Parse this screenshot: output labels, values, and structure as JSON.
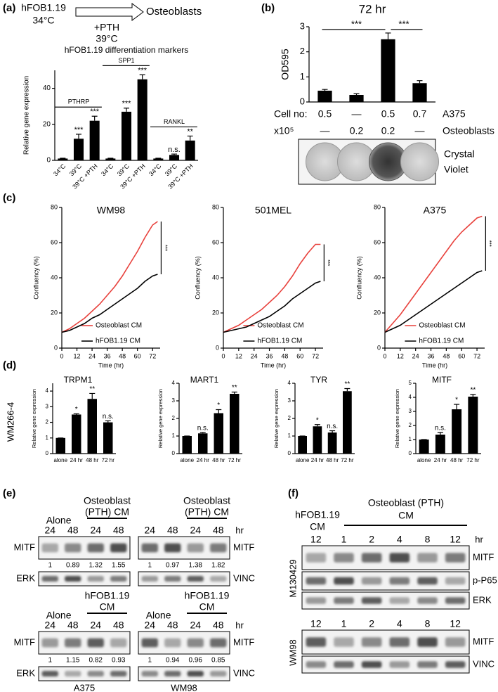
{
  "panel_labels": [
    "(a)",
    "(b)",
    "(c)",
    "(d)",
    "(e)",
    "(f)"
  ],
  "schematic": {
    "start": "hFOB1.19",
    "start_temp": "34°C",
    "end": "Osteoblasts",
    "treatment": "+PTH",
    "treatment_temp": "39°C"
  },
  "crystal_violet": {
    "label_lines": [
      "Crystal",
      "Violet"
    ]
  },
  "panel_d": {
    "row_label": "WM266-4"
  },
  "chart_data": [
    {
      "type": "bar",
      "title": "hFOB1.19 differentiation markers",
      "ylabel": "Relative gene expression",
      "categories": [
        "34°C",
        "39°C",
        "39°C +PTH",
        "34°C",
        "39°C",
        "39°C +PTH",
        "34°C",
        "39°C",
        "39°C +PTH"
      ],
      "values": [
        1,
        12,
        22,
        1,
        27,
        45,
        1,
        3,
        11
      ],
      "errors": [
        0.2,
        2.5,
        2.5,
        0.2,
        2,
        2.5,
        0.2,
        0.5,
        2.5
      ],
      "significance": [
        null,
        "***",
        "***",
        null,
        "***",
        "***",
        null,
        "n.s.",
        "**"
      ],
      "group_labels": [
        "PTHRP",
        "SPP1",
        "RANKL"
      ],
      "ylim": [
        0,
        50
      ],
      "yticks": [
        0,
        20,
        40
      ],
      "color": "#000000"
    },
    {
      "type": "bar",
      "title": "72 hr",
      "ylabel": "OD595",
      "values": [
        0.45,
        0.28,
        2.5,
        0.75
      ],
      "errors": [
        0.05,
        0.05,
        0.25,
        0.1
      ],
      "comparisons": [
        "***",
        "***"
      ],
      "ylim": [
        0,
        3
      ],
      "yticks": [
        0,
        1,
        2,
        3
      ],
      "color": "#000000",
      "table": {
        "header": "Cell no:",
        "unit": "x10⁵",
        "rows": [
          {
            "name": "A375",
            "cells": [
              "0.5",
              "—",
              "0.5",
              "0.7"
            ]
          },
          {
            "name": "Osteoblasts",
            "cells": [
              "—",
              "0.2",
              "0.2",
              "—"
            ]
          }
        ]
      }
    },
    {
      "type": "line",
      "title": "WM98",
      "xlabel": "Time (hr)",
      "ylabel": "Confluency (%)",
      "x": [
        0,
        6,
        12,
        18,
        24,
        30,
        36,
        42,
        48,
        54,
        60,
        66,
        72,
        76
      ],
      "series": [
        {
          "name": "Osteoblast CM",
          "color": "#e8413c",
          "values": [
            9,
            11,
            14,
            17,
            21,
            25,
            30,
            35,
            41,
            48,
            55,
            63,
            70,
            72
          ]
        },
        {
          "name": "hFOB1.19 CM",
          "color": "#000000",
          "values": [
            9,
            10,
            12,
            14,
            17,
            19,
            22,
            25,
            28,
            31,
            34,
            38,
            41,
            42
          ]
        }
      ],
      "significance": "***",
      "xlim": [
        0,
        78
      ],
      "ylim": [
        0,
        80
      ],
      "xticks": [
        0,
        12,
        24,
        36,
        48,
        60,
        72
      ],
      "yticks": [
        0,
        20,
        40,
        60,
        80
      ]
    },
    {
      "type": "line",
      "title": "501MEL",
      "xlabel": "Time (hr)",
      "ylabel": "Confluency (%)",
      "x": [
        0,
        6,
        12,
        18,
        24,
        30,
        36,
        42,
        48,
        54,
        60,
        66,
        72,
        76
      ],
      "series": [
        {
          "name": "Osteoblast CM",
          "color": "#e8413c",
          "values": [
            9,
            11,
            13,
            16,
            19,
            22,
            26,
            30,
            35,
            41,
            48,
            54,
            59,
            59
          ]
        },
        {
          "name": "hFOB1.19 CM",
          "color": "#000000",
          "values": [
            9,
            10,
            11,
            12,
            14,
            16,
            18,
            21,
            24,
            28,
            31,
            34,
            37,
            38
          ]
        }
      ],
      "significance": "***",
      "xlim": [
        0,
        78
      ],
      "ylim": [
        0,
        80
      ],
      "xticks": [
        0,
        12,
        24,
        36,
        48,
        60,
        72
      ],
      "yticks": [
        0,
        20,
        40,
        60,
        80
      ]
    },
    {
      "type": "line",
      "title": "A375",
      "xlabel": "Time (hr)",
      "ylabel": "Confluency (%)",
      "x": [
        0,
        6,
        12,
        18,
        24,
        30,
        36,
        42,
        48,
        54,
        60,
        66,
        72,
        76
      ],
      "series": [
        {
          "name": "Osteoblast CM",
          "color": "#e8413c",
          "values": [
            9,
            14,
            19,
            25,
            31,
            37,
            43,
            49,
            55,
            61,
            66,
            70,
            74,
            75
          ]
        },
        {
          "name": "hFOB1.19 CM",
          "color": "#000000",
          "values": [
            9,
            11,
            13,
            16,
            19,
            22,
            25,
            28,
            31,
            34,
            37,
            40,
            43,
            44
          ]
        }
      ],
      "significance": "***",
      "xlim": [
        0,
        78
      ],
      "ylim": [
        0,
        80
      ],
      "xticks": [
        0,
        12,
        24,
        36,
        48,
        60,
        72
      ],
      "yticks": [
        0,
        20,
        40,
        60,
        80
      ]
    },
    {
      "type": "bar",
      "title": "TRPM1",
      "ylabel": "Relative gene expression",
      "categories": [
        "alone",
        "24 hr",
        "48 hr",
        "72 hr"
      ],
      "values": [
        1,
        2.5,
        3.5,
        2
      ],
      "errors": [
        0,
        0.05,
        0.35,
        0.1
      ],
      "significance": [
        null,
        "*",
        "**",
        "n.s."
      ],
      "ylim": [
        0,
        4.5
      ],
      "yticks": [
        0,
        1,
        2,
        3,
        4
      ],
      "color": "#000000"
    },
    {
      "type": "bar",
      "title": "MART1",
      "ylabel": "Relative gene expression",
      "categories": [
        "alone",
        "24 hr",
        "48 hr",
        "72 hr"
      ],
      "values": [
        1,
        1.15,
        2.3,
        3.4
      ],
      "errors": [
        0,
        0.05,
        0.2,
        0.1
      ],
      "significance": [
        null,
        "n.s.",
        "*",
        "**"
      ],
      "ylim": [
        0,
        4
      ],
      "yticks": [
        0,
        1,
        2,
        3,
        4
      ],
      "color": "#000000"
    },
    {
      "type": "bar",
      "title": "TYR",
      "ylabel": "Relative gene expression",
      "categories": [
        "alone",
        "24 hr",
        "48 hr",
        "72 hr"
      ],
      "values": [
        1,
        1.55,
        1.2,
        3.55
      ],
      "errors": [
        0,
        0.1,
        0.1,
        0.15
      ],
      "significance": [
        null,
        "*",
        "n.s.",
        "**"
      ],
      "ylim": [
        0,
        4
      ],
      "yticks": [
        0,
        1,
        2,
        3,
        4
      ],
      "color": "#000000"
    },
    {
      "type": "bar",
      "title": "MITF",
      "ylabel": "Relative gene expression",
      "categories": [
        "alone",
        "24 hr",
        "48 hr",
        "72 hr"
      ],
      "values": [
        1,
        1.35,
        3.15,
        4.05
      ],
      "errors": [
        0,
        0.15,
        0.35,
        0.15
      ],
      "significance": [
        null,
        "n.s.",
        "*",
        "**"
      ],
      "ylim": [
        0,
        5
      ],
      "yticks": [
        0,
        1,
        2,
        3,
        4,
        5
      ],
      "color": "#000000"
    }
  ],
  "blot_panels": {
    "e": [
      {
        "control": "Alone",
        "treatment": [
          "Osteoblast",
          "(PTH) CM"
        ],
        "lanes": [
          24,
          48,
          24,
          48
        ],
        "rows": [
          "MITF",
          "ERK"
        ],
        "quantification": [
          1,
          0.89,
          1.32,
          1.55
        ]
      },
      {
        "treatment": [
          "Osteoblast",
          "(PTH) CM"
        ],
        "lanes": [
          24,
          48,
          24,
          48
        ],
        "unit": "hr",
        "rows": [
          "MITF",
          "VINC"
        ],
        "quantification": [
          1,
          0.97,
          1.38,
          1.82
        ]
      },
      {
        "control": "Alone",
        "treatment": [
          "hFOB1.19",
          "CM"
        ],
        "lanes": [
          24,
          48,
          24,
          48
        ],
        "rows": [
          "MITF",
          "ERK"
        ],
        "quantification": [
          1,
          1.15,
          0.82,
          0.93
        ],
        "cell_line": "A375"
      },
      {
        "control": "Alone",
        "treatment": [
          "hFOB1.19",
          "CM"
        ],
        "lanes": [
          24,
          48,
          24,
          48
        ],
        "unit": "hr",
        "rows": [
          "MITF",
          "VINC"
        ],
        "quantification": [
          1,
          0.94,
          0.96,
          0.85
        ],
        "cell_line": "WM98"
      }
    ],
    "f": {
      "control": [
        "hFOB1.19",
        "CM"
      ],
      "treatment": [
        "Osteoblast (PTH)",
        "CM"
      ],
      "groups": [
        {
          "cell_line": "M130429",
          "lanes": [
            12,
            1,
            2,
            4,
            8,
            12
          ],
          "unit": "hr",
          "rows": [
            "MITF",
            "p-P65",
            "ERK"
          ]
        },
        {
          "cell_line": "WM98",
          "lanes": [
            12,
            1,
            2,
            4,
            8,
            12
          ],
          "rows": [
            "MITF",
            "VINC"
          ]
        }
      ]
    }
  }
}
